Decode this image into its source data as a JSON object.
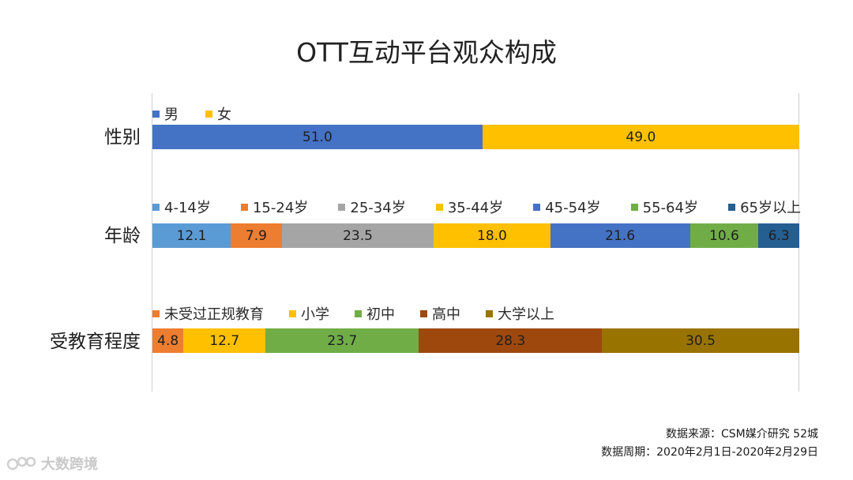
{
  "chart_data": {
    "type": "bar",
    "stacked": true,
    "orientation": "horizontal",
    "percent_stacked": true,
    "title": "OTT互动平台观众构成",
    "groups": [
      {
        "label": "性别",
        "series": [
          {
            "name": "男",
            "value": 51.0,
            "label": "51.0",
            "color": "#4472C4"
          },
          {
            "name": "女",
            "value": 49.0,
            "label": "49.0",
            "color": "#FFC000"
          }
        ]
      },
      {
        "label": "年龄",
        "series": [
          {
            "name": "4-14岁",
            "value": 12.1,
            "label": "12.1",
            "color": "#5B9BD5"
          },
          {
            "name": "15-24岁",
            "value": 7.9,
            "label": "7.9",
            "color": "#ED7D31"
          },
          {
            "name": "25-34岁",
            "value": 23.5,
            "label": "23.5",
            "color": "#A5A5A5"
          },
          {
            "name": "35-44岁",
            "value": 18.0,
            "label": "18.0",
            "color": "#FFC000"
          },
          {
            "name": "45-54岁",
            "value": 21.6,
            "label": "21.6",
            "color": "#4472C4"
          },
          {
            "name": "55-64岁",
            "value": 10.6,
            "label": "10.6",
            "color": "#70AD47"
          },
          {
            "name": "65岁以上",
            "value": 6.3,
            "label": "6.3",
            "color": "#255E91"
          }
        ]
      },
      {
        "label": "受教育程度",
        "series": [
          {
            "name": "未受过正规教育",
            "value": 4.8,
            "label": "4.8",
            "color": "#ED7D31"
          },
          {
            "name": "小学",
            "value": 12.7,
            "label": "12.7",
            "color": "#FFC000"
          },
          {
            "name": "初中",
            "value": 23.7,
            "label": "23.7",
            "color": "#70AD47"
          },
          {
            "name": "高中",
            "value": 28.3,
            "label": "28.3",
            "color": "#9E480E"
          },
          {
            "name": "大学以上",
            "value": 30.5,
            "label": "30.5",
            "color": "#997300"
          }
        ]
      }
    ],
    "xlim": [
      0,
      100
    ],
    "grid": false,
    "legend": "top"
  },
  "source": {
    "line1": "数据来源：CSM媒介研究 52城",
    "line2": "数据周期：2020年2月1日-2020年2月29日"
  },
  "watermark": {
    "text": "大数跨境",
    "icon": "logo-icon"
  }
}
